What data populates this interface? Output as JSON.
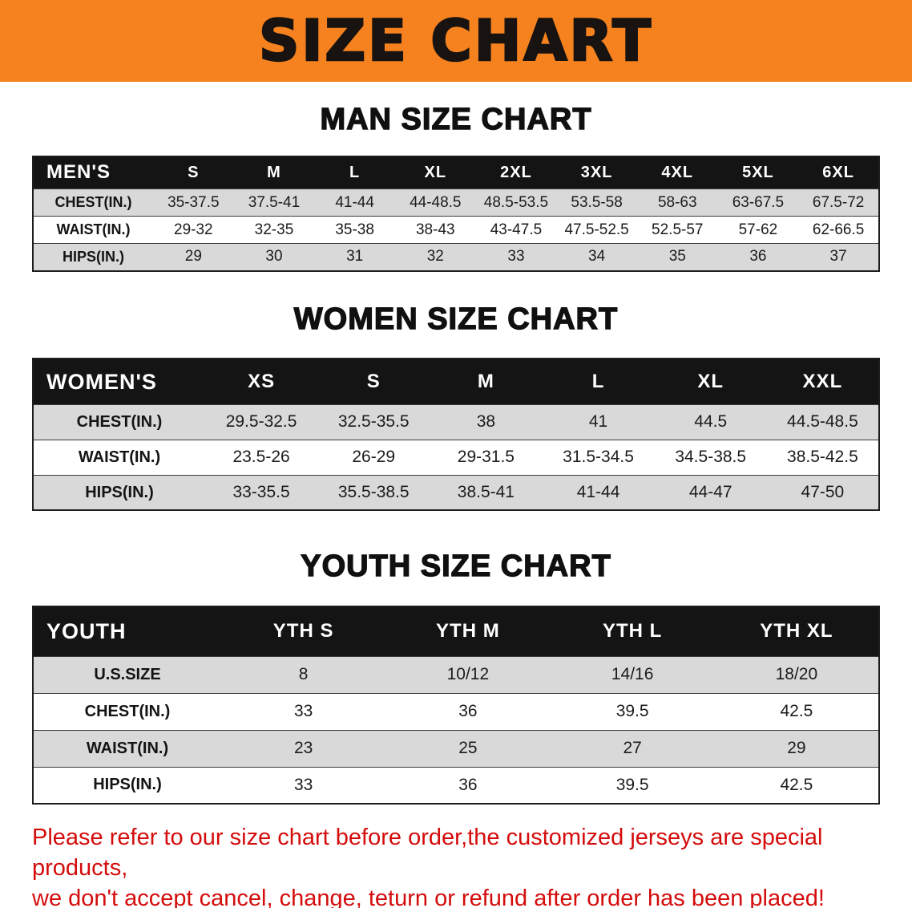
{
  "banner": {
    "title": "SIZE CHART"
  },
  "colors": {
    "banner_bg": "#f5821f",
    "header_bg": "#141414",
    "row_alt": "#d9d9d9",
    "disclaimer_red": "#d40c0c"
  },
  "sections": [
    {
      "id": "men",
      "heading": "MAN SIZE CHART",
      "table": {
        "header": [
          "MEN'S",
          "S",
          "M",
          "L",
          "XL",
          "2XL",
          "3XL",
          "4XL",
          "5XL",
          "6XL"
        ],
        "rows": [
          [
            "CHEST(IN.)",
            "35-37.5",
            "37.5-41",
            "41-44",
            "44-48.5",
            "48.5-53.5",
            "53.5-58",
            "58-63",
            "63-67.5",
            "67.5-72"
          ],
          [
            "WAIST(IN.)",
            "29-32",
            "32-35",
            "35-38",
            "38-43",
            "43-47.5",
            "47.5-52.5",
            "52.5-57",
            "57-62",
            "62-66.5"
          ],
          [
            "HIPS(IN.)",
            "29",
            "30",
            "31",
            "32",
            "33",
            "34",
            "35",
            "36",
            "37"
          ]
        ]
      }
    },
    {
      "id": "women",
      "heading": "WOMEN SIZE CHART",
      "table": {
        "header": [
          "WOMEN'S",
          "XS",
          "S",
          "M",
          "L",
          "XL",
          "XXL"
        ],
        "rows": [
          [
            "CHEST(IN.)",
            "29.5-32.5",
            "32.5-35.5",
            "38",
            "41",
            "44.5",
            "44.5-48.5"
          ],
          [
            "WAIST(IN.)",
            "23.5-26",
            "26-29",
            "29-31.5",
            "31.5-34.5",
            "34.5-38.5",
            "38.5-42.5"
          ],
          [
            "HIPS(IN.)",
            "33-35.5",
            "35.5-38.5",
            "38.5-41",
            "41-44",
            "44-47",
            "47-50"
          ]
        ]
      }
    },
    {
      "id": "youth",
      "heading": "YOUTH SIZE CHART",
      "table": {
        "header": [
          "YOUTH",
          "YTH S",
          "YTH M",
          "YTH L",
          "YTH XL"
        ],
        "rows": [
          [
            "U.S.SIZE",
            "8",
            "10/12",
            "14/16",
            "18/20"
          ],
          [
            "CHEST(IN.)",
            "33",
            "36",
            "39.5",
            "42.5"
          ],
          [
            "WAIST(IN.)",
            "23",
            "25",
            "27",
            "29"
          ],
          [
            "HIPS(IN.)",
            "33",
            "36",
            "39.5",
            "42.5"
          ]
        ]
      }
    }
  ],
  "disclaimer": {
    "line1": "Please refer to our size chart before order,the customized jerseys are special products,",
    "line2": "we don't accept cancel, change, teturn or refund after order has been placed!"
  }
}
